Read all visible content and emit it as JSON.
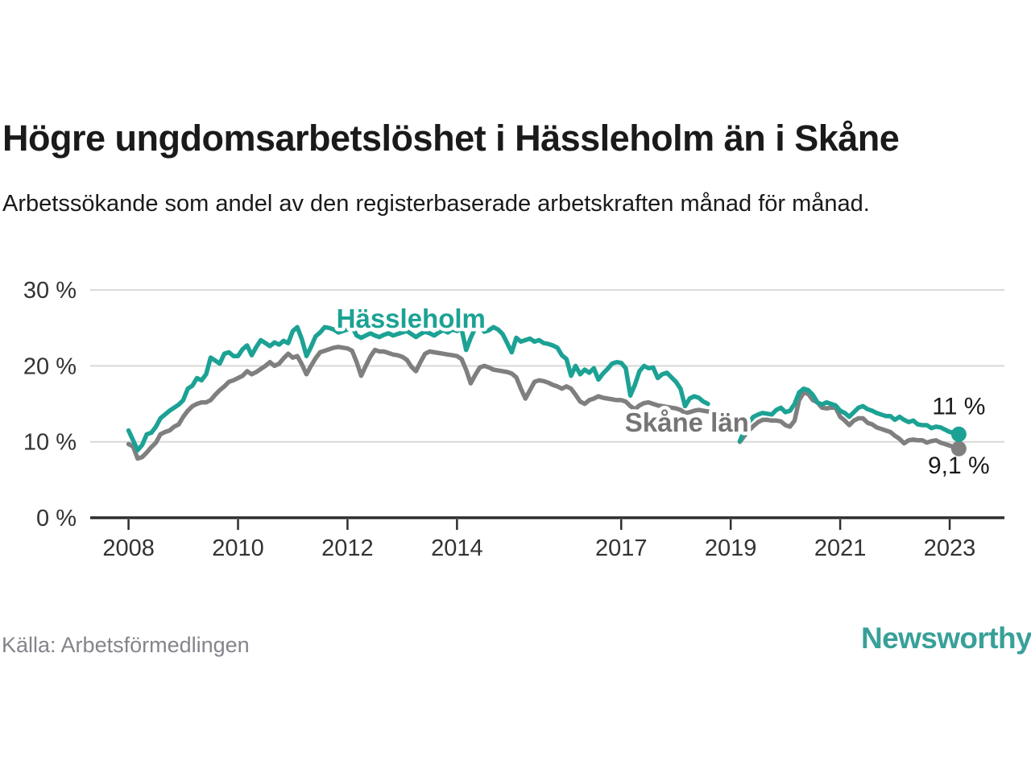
{
  "header": {
    "title": "Högre ungdomsarbetslöshet i Hässleholm än i Skåne",
    "subtitle": "Arbetssökande som andel av den registerbaserade arbetskraften månad för månad."
  },
  "footer": {
    "source": "Källa: Arbetsförmedlingen",
    "logo_text": "Newsworthy",
    "logo_color": "#3ba29c"
  },
  "chart_data": {
    "type": "line",
    "x_start_year": 2008,
    "x_step_months": 1,
    "xlim": [
      2007.3,
      2024.0
    ],
    "ylim": [
      0,
      31.5
    ],
    "grid": "horizontal",
    "y_ticks": [
      {
        "value": 0,
        "label": "0 %"
      },
      {
        "value": 10,
        "label": "10 %"
      },
      {
        "value": 20,
        "label": "20 %"
      },
      {
        "value": 30,
        "label": "30 %"
      }
    ],
    "x_ticks": [
      {
        "value": 2008,
        "label": "2008"
      },
      {
        "value": 2010,
        "label": "2010"
      },
      {
        "value": 2012,
        "label": "2012"
      },
      {
        "value": 2014,
        "label": "2014"
      },
      {
        "value": 2017,
        "label": "2017"
      },
      {
        "value": 2019,
        "label": "2019"
      },
      {
        "value": 2021,
        "label": "2021"
      },
      {
        "value": 2023,
        "label": "2023"
      }
    ],
    "series": [
      {
        "name": "Skåne län",
        "id": "skane",
        "color": "#7f7f7f",
        "label_color": "#757575",
        "end_label": "9,1 %",
        "end_label_side": "below",
        "values": [
          9.7,
          9.4,
          7.8,
          8.0,
          8.6,
          9.3,
          9.9,
          11.0,
          11.3,
          11.5,
          12.0,
          12.3,
          13.3,
          14.1,
          14.7,
          15.0,
          15.2,
          15.2,
          15.5,
          16.2,
          16.8,
          17.3,
          17.9,
          18.1,
          18.4,
          18.7,
          19.3,
          18.9,
          19.2,
          19.6,
          20.0,
          20.5,
          20.0,
          20.3,
          21.0,
          21.6,
          21.1,
          21.3,
          20.2,
          18.9,
          20.0,
          21.0,
          21.8,
          22.0,
          22.2,
          22.4,
          22.5,
          22.4,
          22.3,
          22.0,
          20.5,
          18.7,
          20.0,
          21.2,
          22.1,
          21.9,
          21.9,
          21.7,
          21.5,
          21.4,
          21.2,
          20.8,
          19.9,
          19.3,
          20.5,
          21.6,
          21.9,
          21.8,
          21.7,
          21.6,
          21.5,
          21.4,
          21.3,
          20.9,
          19.5,
          17.7,
          18.8,
          19.8,
          20.0,
          19.8,
          19.5,
          19.4,
          19.3,
          19.2,
          19.0,
          18.5,
          17.0,
          15.7,
          16.8,
          17.9,
          18.1,
          18.0,
          17.8,
          17.5,
          17.3,
          17.0,
          17.3,
          17.0,
          16.2,
          15.3,
          15.0,
          15.5,
          15.7,
          16.0,
          15.8,
          15.7,
          15.6,
          15.5,
          15.5,
          15.3,
          14.7,
          14.3,
          14.8,
          15.1,
          15.2,
          15.0,
          14.8,
          14.7,
          14.6,
          14.5,
          14.4,
          14.2,
          13.8,
          13.9,
          14.1,
          14.2,
          14.1,
          14.0,
          null,
          null,
          null,
          null,
          null,
          null,
          10.0,
          10.8,
          11.5,
          12.1,
          12.6,
          12.9,
          12.9,
          12.8,
          12.8,
          12.7,
          12.2,
          12.0,
          12.8,
          15.5,
          16.5,
          16.3,
          15.5,
          15.2,
          14.5,
          14.4,
          14.5,
          14.5,
          13.3,
          12.8,
          12.2,
          12.8,
          13.1,
          13.1,
          12.5,
          12.3,
          11.9,
          11.7,
          11.5,
          11.3,
          10.8,
          10.4,
          9.8,
          10.2,
          10.3,
          10.2,
          10.2,
          9.9,
          10.1,
          10.2,
          9.9,
          9.7,
          9.5,
          9.3,
          9.1
        ]
      },
      {
        "name": "Hässleholm",
        "id": "hassleholm",
        "color": "#1ca294",
        "label_color": "#1ca294",
        "end_label": "11 %",
        "end_label_side": "above",
        "values": [
          11.5,
          10.2,
          8.9,
          9.6,
          11.0,
          11.2,
          12.0,
          13.1,
          13.6,
          14.1,
          14.5,
          14.9,
          15.5,
          17.0,
          17.4,
          18.4,
          18.1,
          18.9,
          21.1,
          20.7,
          20.3,
          21.6,
          21.8,
          21.3,
          21.3,
          22.2,
          22.7,
          21.4,
          22.5,
          23.4,
          23.0,
          22.6,
          23.1,
          22.8,
          23.3,
          23.0,
          24.6,
          25.1,
          23.5,
          21.3,
          22.5,
          23.9,
          24.4,
          25.1,
          25.0,
          24.8,
          24.4,
          24.6,
          24.8,
          25.2,
          24.0,
          23.7,
          24.0,
          24.3,
          24.0,
          23.8,
          24.1,
          24.3,
          24.0,
          24.2,
          24.4,
          24.6,
          24.2,
          23.8,
          24.2,
          24.5,
          24.3,
          24.0,
          24.4,
          24.7,
          24.4,
          24.8,
          24.6,
          24.9,
          22.1,
          23.7,
          25.0,
          25.3,
          24.5,
          24.7,
          25.1,
          24.8,
          24.2,
          23.0,
          21.8,
          23.7,
          23.2,
          23.4,
          23.6,
          23.2,
          23.4,
          23.0,
          22.9,
          22.7,
          22.4,
          21.4,
          20.9,
          18.7,
          20.0,
          18.9,
          19.5,
          19.1,
          19.7,
          18.2,
          19.0,
          19.6,
          20.3,
          20.5,
          20.4,
          19.7,
          16.1,
          17.5,
          19.3,
          20.0,
          19.7,
          19.8,
          18.4,
          18.9,
          19.1,
          18.5,
          17.9,
          17.0,
          14.7,
          15.7,
          16.0,
          15.8,
          15.3,
          15.0,
          null,
          null,
          null,
          null,
          null,
          null,
          10.1,
          11.5,
          12.6,
          13.3,
          13.6,
          13.8,
          13.7,
          13.6,
          14.2,
          14.5,
          13.9,
          14.1,
          15.0,
          16.5,
          17.0,
          16.8,
          16.2,
          15.2,
          14.9,
          15.2,
          15.0,
          14.8,
          14.1,
          13.8,
          13.3,
          13.9,
          14.5,
          14.7,
          14.3,
          14.1,
          13.8,
          13.6,
          13.4,
          13.4,
          12.9,
          13.3,
          12.9,
          12.6,
          12.8,
          12.3,
          12.2,
          12.2,
          11.8,
          12.0,
          11.9,
          11.6,
          11.3,
          11.2,
          11.0
        ]
      }
    ],
    "annotations": [
      {
        "text": "Hässleholm",
        "x": 2013.16,
        "y": 26.2,
        "series": "hassleholm"
      },
      {
        "text": "Skåne län",
        "x": 2018.2,
        "y": 12.5,
        "series": "skane"
      }
    ],
    "colors": {
      "grid": "#d9d9d9",
      "axis": "#2e2e2e",
      "tick_text": "#333333"
    }
  }
}
